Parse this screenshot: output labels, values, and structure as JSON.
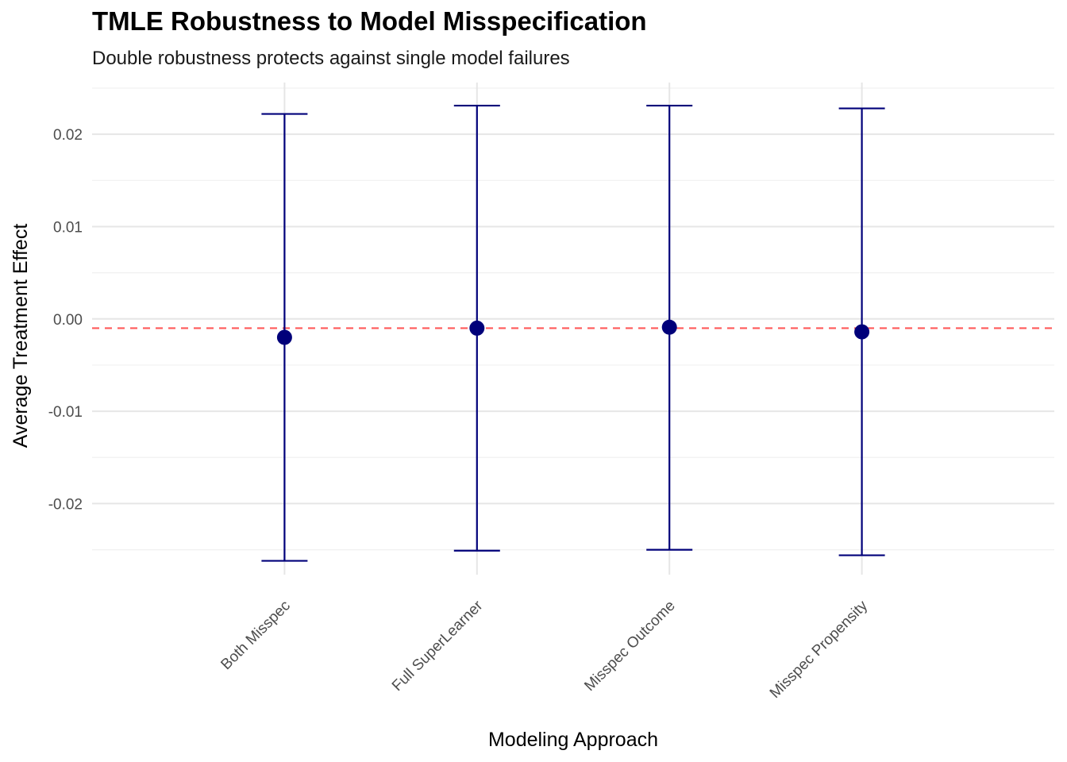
{
  "chart_data": {
    "type": "errorbar",
    "title": "TMLE Robustness to Model Misspecification",
    "subtitle": "Double robustness protects against single model failures",
    "xlabel": "Modeling Approach",
    "ylabel": "Average Treatment Effect",
    "categories": [
      "Both Misspec",
      "Full SuperLearner",
      "Misspec Outcome",
      "Misspec Propensity"
    ],
    "estimates": [
      -0.002,
      -0.001,
      -0.0009,
      -0.0014
    ],
    "ci_lower": [
      -0.0262,
      -0.0251,
      -0.025,
      -0.0256
    ],
    "ci_upper": [
      0.0222,
      0.0231,
      0.0231,
      0.0228
    ],
    "reference_line": -0.001,
    "yticks": [
      "0.02",
      "0.01",
      "0.00",
      "-0.01",
      "-0.02"
    ],
    "ytick_values": [
      0.02,
      0.01,
      0.0,
      -0.01,
      -0.02
    ],
    "ylim": [
      -0.0277,
      0.0256
    ],
    "grid": true,
    "colors": {
      "point": "#00007a",
      "errorbar": "#00007a",
      "reference": "#ff5a5a",
      "grid_major": "#e6e6e6",
      "grid_minor": "#f0f0f0"
    }
  }
}
